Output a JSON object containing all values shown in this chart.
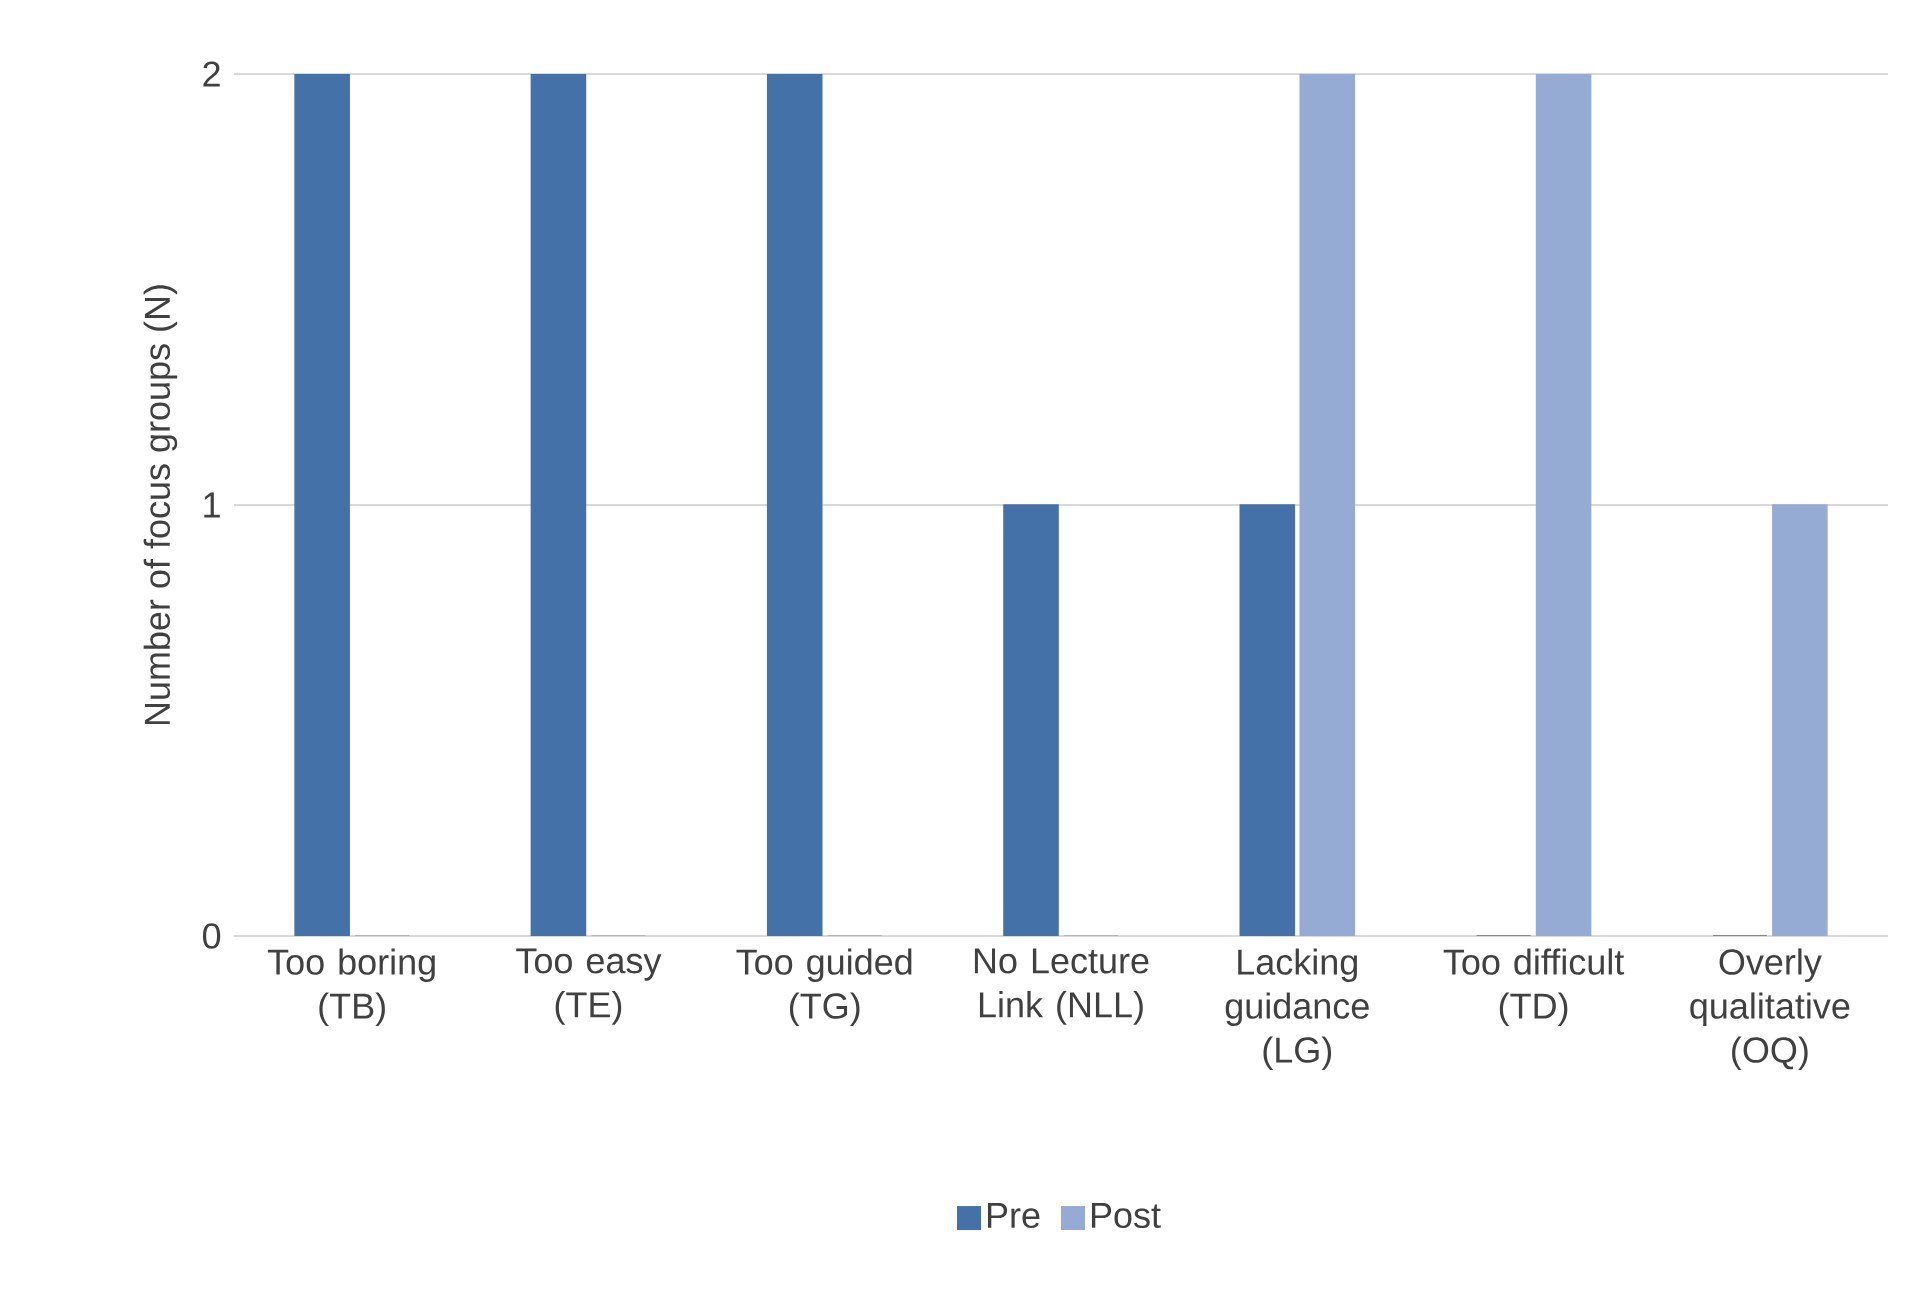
{
  "chart_data": {
    "type": "bar",
    "categories": [
      "Too boring (TB)",
      "Too easy (TE)",
      "Too guided (TG)",
      "No Lecture Link (NLL)",
      "Lacking guidance (LG)",
      "Too difficult (TD)",
      "Overly qualitative (OQ)"
    ],
    "series": [
      {
        "name": "Pre",
        "color": "#4472a8",
        "values": [
          2,
          2,
          2,
          1,
          1,
          0,
          0
        ]
      },
      {
        "name": "Post",
        "color": "#95abd4",
        "values": [
          0,
          0,
          0,
          0,
          2,
          2,
          1
        ]
      }
    ],
    "ylabel": "Number of focus groups (N)",
    "ylim": [
      0,
      2
    ],
    "yticks": [
      0,
      1,
      2
    ],
    "grid": "y",
    "legend": "bottom"
  }
}
